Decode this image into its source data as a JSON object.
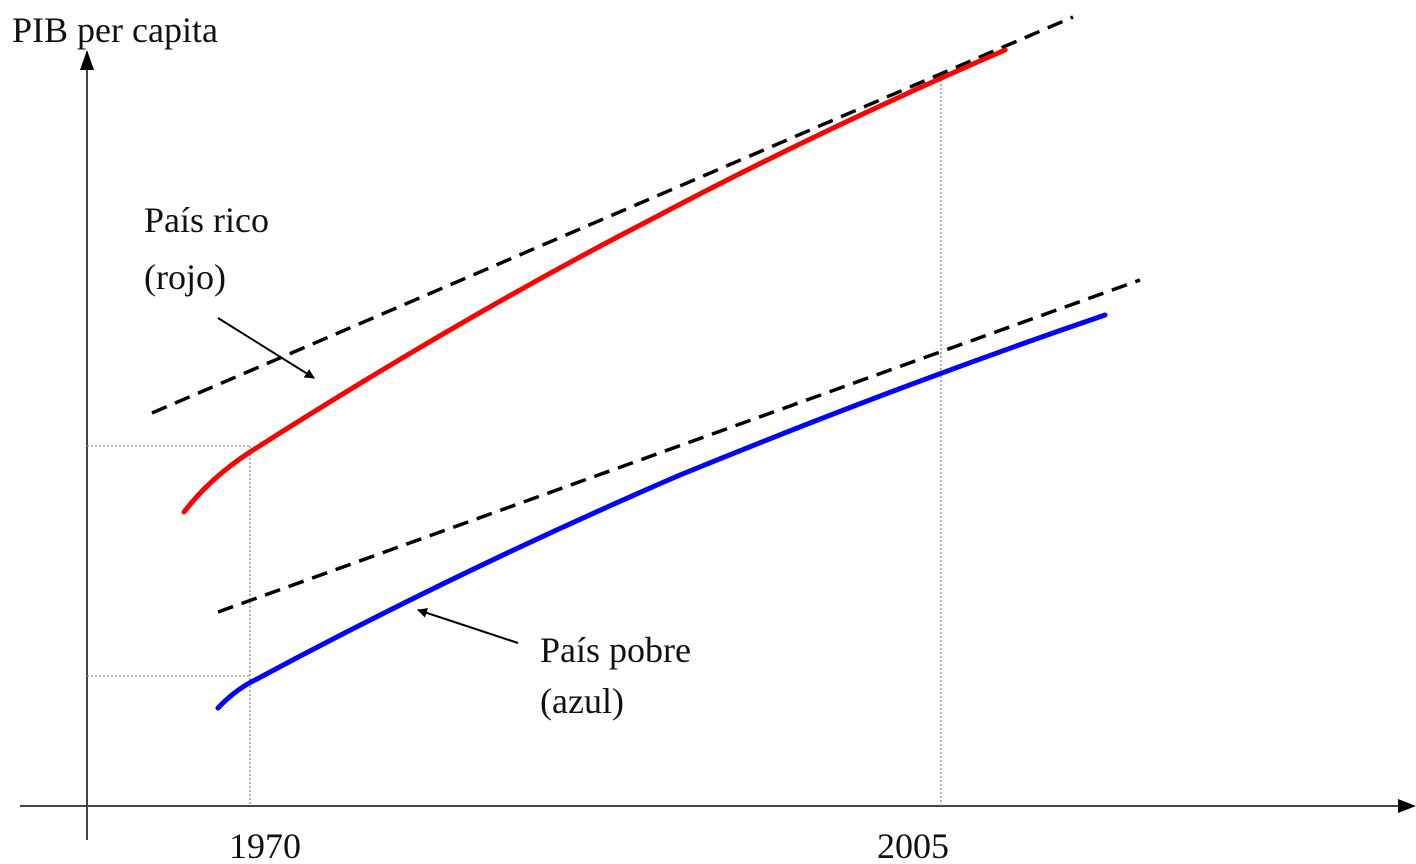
{
  "diagram": {
    "y_axis_label": "PIB per capita",
    "x_ticks": [
      "1970",
      "2005"
    ],
    "rich": {
      "label_line1": "País rico",
      "label_line2": "(rojo)",
      "color": "#ff0000"
    },
    "poor": {
      "label_line1": "País pobre",
      "label_line2": "(azul)",
      "color": "#0000ff"
    },
    "trend_line_style": "dashed",
    "trend_line_color": "#000000",
    "guide_line_style": "dotted"
  }
}
